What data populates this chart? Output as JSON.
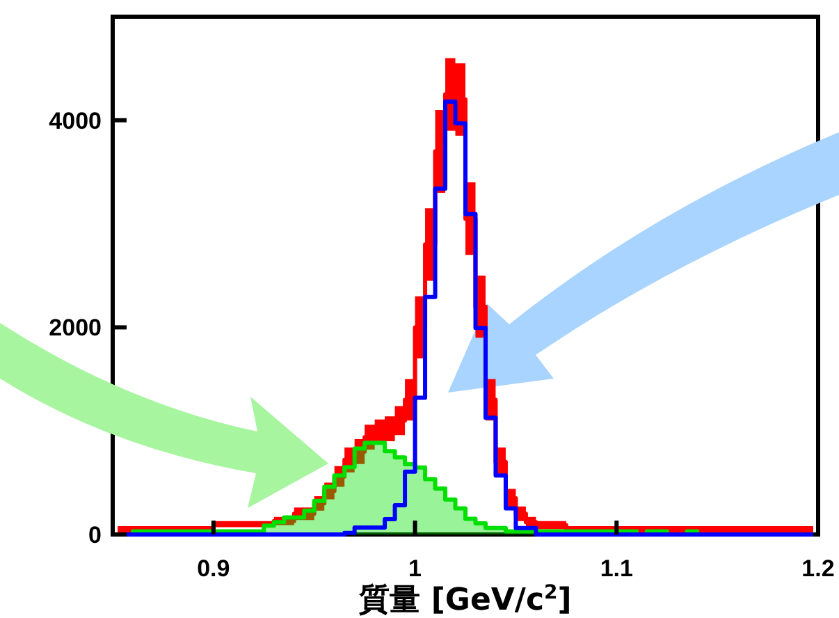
{
  "chart_data": {
    "type": "step",
    "xlabel": "質量 [GeV/c$^{2}$]",
    "x": [
      0.8525,
      0.8575,
      0.8625,
      0.8675,
      0.8725,
      0.8775,
      0.8825,
      0.8875,
      0.8925,
      0.8975,
      0.9025,
      0.9075,
      0.9125,
      0.9175,
      0.9225,
      0.9275,
      0.9325,
      0.9375,
      0.9425,
      0.9475,
      0.9525,
      0.9575,
      0.9625,
      0.9675,
      0.9725,
      0.9775,
      0.9825,
      0.9875,
      0.9925,
      0.9975,
      1.0025,
      1.0075,
      1.0125,
      1.0175,
      1.0225,
      1.0275,
      1.0325,
      1.0375,
      1.0425,
      1.0475,
      1.0525,
      1.0575,
      1.0625,
      1.0675,
      1.0725,
      1.0775,
      1.0825,
      1.0875,
      1.0925,
      1.0975,
      1.1025,
      1.1075,
      1.1125,
      1.1175,
      1.1225,
      1.1275,
      1.1325,
      1.1375,
      1.1425,
      1.1475,
      1.1525,
      1.1575,
      1.1625,
      1.1675,
      1.1725,
      1.1775,
      1.1825,
      1.1875,
      1.1925,
      1.1975
    ],
    "series": [
      {
        "color": "#ff0000",
        "values": [
          50,
          50,
          50,
          50,
          50,
          50,
          50,
          50,
          50,
          50,
          100,
          100,
          100,
          100,
          100,
          100,
          130,
          130,
          200,
          200,
          300,
          420,
          560,
          720,
          800,
          940,
          990,
          1020,
          1100,
          1300,
          2000,
          2800,
          3700,
          4250,
          4200,
          3050,
          2200,
          1300,
          700,
          350,
          200,
          120,
          90,
          90,
          90,
          50,
          50,
          50,
          50,
          50,
          50,
          50,
          50,
          50,
          50,
          50,
          50,
          50,
          50,
          50,
          50,
          50,
          50,
          50,
          50,
          50,
          50,
          50,
          50,
          50
        ],
        "lower": [
          20,
          20,
          20,
          20,
          20,
          20,
          20,
          20,
          20,
          20,
          70,
          70,
          70,
          70,
          70,
          70,
          90,
          90,
          140,
          140,
          230,
          340,
          460,
          600,
          680,
          820,
          870,
          900,
          960,
          1100,
          1700,
          2450,
          3300,
          3900,
          3850,
          2700,
          1900,
          1100,
          560,
          260,
          130,
          70,
          50,
          50,
          50,
          20,
          20,
          20,
          20,
          20,
          20,
          20,
          20,
          20,
          20,
          20,
          20,
          20,
          20,
          20,
          20,
          20,
          20,
          20,
          20,
          20,
          20,
          20,
          20,
          20
        ],
        "upper": [
          80,
          80,
          80,
          80,
          80,
          80,
          80,
          80,
          80,
          80,
          130,
          130,
          130,
          130,
          130,
          130,
          170,
          170,
          260,
          260,
          370,
          500,
          660,
          840,
          920,
          1060,
          1110,
          1140,
          1240,
          1500,
          2300,
          3150,
          4100,
          4600,
          4550,
          3400,
          2500,
          1500,
          840,
          440,
          270,
          170,
          130,
          130,
          130,
          80,
          80,
          80,
          80,
          80,
          80,
          80,
          80,
          80,
          80,
          80,
          80,
          80,
          80,
          80,
          80,
          80,
          80,
          80,
          80,
          80,
          80,
          80,
          80,
          80
        ]
      },
      {
        "type": "area",
        "color": "#00e000",
        "values": [
          0,
          0,
          30,
          30,
          30,
          30,
          30,
          30,
          30,
          30,
          30,
          30,
          30,
          30,
          30,
          85,
          120,
          165,
          165,
          230,
          325,
          460,
          570,
          650,
          830,
          885,
          885,
          804,
          745,
          678,
          647,
          534,
          444,
          337,
          252,
          152,
          108,
          63,
          63,
          30,
          30,
          30,
          30,
          30,
          30,
          30,
          30,
          30,
          30,
          30,
          30,
          30,
          0,
          30,
          30,
          0,
          0,
          30,
          0,
          0,
          0,
          0,
          0,
          0,
          0,
          0,
          0,
          0,
          0,
          0
        ]
      },
      {
        "color": "#0000ff",
        "values": [
          0,
          0,
          0,
          0,
          0,
          0,
          0,
          0,
          0,
          0,
          0,
          0,
          0,
          0,
          0,
          0,
          0,
          0,
          0,
          0,
          0,
          0,
          0,
          15,
          67,
          67,
          67,
          148,
          283,
          606,
          1320,
          2294,
          3340,
          4180,
          3970,
          3094,
          1994,
          1127,
          570,
          252,
          63,
          63,
          0,
          0,
          0,
          0,
          0,
          0,
          0,
          0,
          0,
          0,
          0,
          0,
          0,
          0,
          0,
          0,
          0,
          0,
          0,
          0,
          0,
          0,
          0,
          0,
          0,
          0,
          0,
          0
        ]
      }
    ],
    "xlim": [
      0.85,
      1.2
    ],
    "ylim": [
      0,
      5000
    ],
    "xticks": [
      0.9,
      1,
      1.1,
      1.2
    ],
    "yticks": [
      0,
      2000,
      4000
    ]
  }
}
